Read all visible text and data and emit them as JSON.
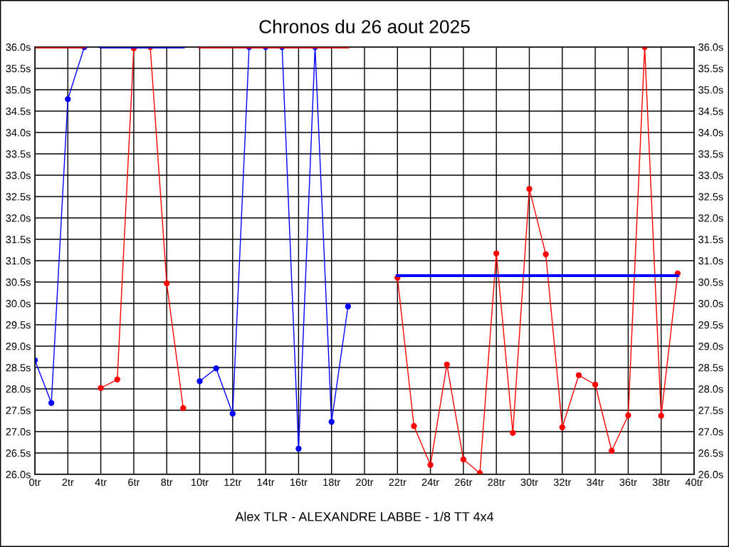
{
  "chart_data": {
    "type": "line",
    "title": "Chronos du 26 aout 2025",
    "xlabel": "Alex TLR - ALEXANDRE LABBE - 1/8 TT 4x4",
    "xlim": [
      0,
      40
    ],
    "xticks": [
      {
        "value": 0,
        "label": "0tr"
      },
      {
        "value": 2,
        "label": "2tr"
      },
      {
        "value": 4,
        "label": "4tr"
      },
      {
        "value": 6,
        "label": "6tr"
      },
      {
        "value": 8,
        "label": "8tr"
      },
      {
        "value": 10,
        "label": "10tr"
      },
      {
        "value": 12,
        "label": "12tr"
      },
      {
        "value": 14,
        "label": "14tr"
      },
      {
        "value": 16,
        "label": "16tr"
      },
      {
        "value": 18,
        "label": "18tr"
      },
      {
        "value": 20,
        "label": "20tr"
      },
      {
        "value": 22,
        "label": "22tr"
      },
      {
        "value": 24,
        "label": "24tr"
      },
      {
        "value": 26,
        "label": "26tr"
      },
      {
        "value": 28,
        "label": "28tr"
      },
      {
        "value": 30,
        "label": "30tr"
      },
      {
        "value": 32,
        "label": "32tr"
      },
      {
        "value": 34,
        "label": "34tr"
      },
      {
        "value": 36,
        "label": "36tr"
      },
      {
        "value": 38,
        "label": "38tr"
      },
      {
        "value": 40,
        "label": "40tr"
      }
    ],
    "ylim": [
      26.0,
      36.0
    ],
    "yticks": [
      {
        "value": 26.0,
        "label": "26.0s"
      },
      {
        "value": 26.5,
        "label": "26.5s"
      },
      {
        "value": 27.0,
        "label": "27.0s"
      },
      {
        "value": 27.5,
        "label": "27.5s"
      },
      {
        "value": 28.0,
        "label": "28.0s"
      },
      {
        "value": 28.5,
        "label": "28.5s"
      },
      {
        "value": 29.0,
        "label": "29.0s"
      },
      {
        "value": 29.5,
        "label": "29.5s"
      },
      {
        "value": 30.0,
        "label": "30.0s"
      },
      {
        "value": 30.5,
        "label": "30.5s"
      },
      {
        "value": 31.0,
        "label": "31.0s"
      },
      {
        "value": 31.5,
        "label": "31.5s"
      },
      {
        "value": 32.0,
        "label": "32.0s"
      },
      {
        "value": 32.5,
        "label": "32.5s"
      },
      {
        "value": 33.0,
        "label": "33.0s"
      },
      {
        "value": 33.5,
        "label": "33.5s"
      },
      {
        "value": 34.0,
        "label": "34.0s"
      },
      {
        "value": 34.5,
        "label": "34.5s"
      },
      {
        "value": 35.0,
        "label": "35.0s"
      },
      {
        "value": 35.5,
        "label": "35.5s"
      },
      {
        "value": 36.0,
        "label": "36.0s"
      }
    ],
    "y2lim": [
      26.0,
      36.0
    ],
    "y2ticks": [
      {
        "value": 26.0,
        "label": "26.0s"
      },
      {
        "value": 26.5,
        "label": "26.5s"
      },
      {
        "value": 27.0,
        "label": "27.0s"
      },
      {
        "value": 27.5,
        "label": "27.5s"
      },
      {
        "value": 28.0,
        "label": "28.0s"
      },
      {
        "value": 28.5,
        "label": "28.5s"
      },
      {
        "value": 29.0,
        "label": "29.0s"
      },
      {
        "value": 29.5,
        "label": "29.5s"
      },
      {
        "value": 30.0,
        "label": "30.0s"
      },
      {
        "value": 30.5,
        "label": "30.5s"
      },
      {
        "value": 31.0,
        "label": "31.0s"
      },
      {
        "value": 31.5,
        "label": "31.5s"
      },
      {
        "value": 32.0,
        "label": "32.0s"
      },
      {
        "value": 32.5,
        "label": "32.5s"
      },
      {
        "value": 33.0,
        "label": "33.0s"
      },
      {
        "value": 33.5,
        "label": "33.5s"
      },
      {
        "value": 34.0,
        "label": "34.0s"
      },
      {
        "value": 34.5,
        "label": "34.5s"
      },
      {
        "value": 35.0,
        "label": "35.0s"
      },
      {
        "value": 35.5,
        "label": "35.5s"
      },
      {
        "value": 36.0,
        "label": "36.0s"
      }
    ],
    "grid": true,
    "legend": false,
    "marker": "circle",
    "series": [
      {
        "color": "#0000ff",
        "x": [
          0,
          1,
          2,
          3
        ],
        "values": [
          28.67,
          27.67,
          34.78,
          36.0
        ]
      },
      {
        "color": "#ff0000",
        "x": [
          4,
          5,
          6,
          7,
          8,
          9
        ],
        "values": [
          28.02,
          28.22,
          35.97,
          36.0,
          30.47,
          27.55
        ]
      },
      {
        "color": "#0000ff",
        "x": [
          10,
          11,
          12,
          13,
          14,
          15,
          16,
          17,
          18,
          19
        ],
        "values": [
          28.18,
          28.48,
          27.42,
          36.0,
          36.0,
          36.0,
          26.6,
          36.0,
          27.23,
          29.93
        ]
      },
      {
        "color": "#ff0000",
        "x": [
          22,
          23,
          24,
          25,
          26,
          27,
          28,
          29,
          30,
          31,
          32,
          33,
          34,
          35,
          36,
          37,
          38,
          39
        ],
        "values": [
          30.6,
          27.13,
          26.22,
          28.57,
          26.35,
          26.03,
          31.17,
          26.97,
          32.68,
          31.15,
          27.1,
          28.32,
          28.1,
          26.55,
          27.38,
          36.0,
          27.37,
          30.7
        ]
      },
      {
        "color": "#ff0000",
        "marker": "none",
        "x": [
          0,
          3
        ],
        "values": [
          36.0,
          36.0
        ]
      },
      {
        "color": "#0000ff",
        "marker": "none",
        "x": [
          4,
          9
        ],
        "values": [
          36.0,
          36.0
        ]
      },
      {
        "color": "#ff0000",
        "marker": "none",
        "x": [
          10,
          19
        ],
        "values": [
          36.0,
          36.0
        ]
      },
      {
        "color": "#0000ff",
        "marker": "none",
        "x": [
          22,
          39
        ],
        "values": [
          30.65,
          30.65
        ]
      }
    ]
  }
}
